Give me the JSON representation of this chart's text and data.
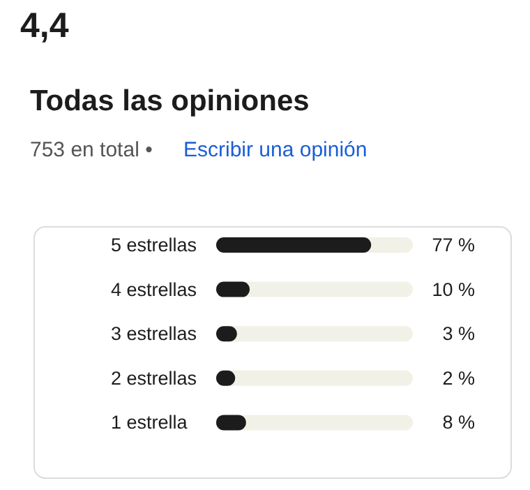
{
  "chart_data": {
    "type": "bar",
    "orientation": "horizontal",
    "title": "Todas las opiniones",
    "subtitle": "753 en total •",
    "annotations": [
      "4,4",
      "Escribir una opinión"
    ],
    "categories": [
      "5 estrellas",
      "4 estrellas",
      "3 estrellas",
      "2 estrellas",
      "1 estrella"
    ],
    "values": [
      77,
      10,
      3,
      2,
      8
    ],
    "color": "#1c1c1c",
    "value_labels": [
      "77 %",
      "10 %",
      "3 %",
      "2 %",
      "8 %"
    ]
  }
}
